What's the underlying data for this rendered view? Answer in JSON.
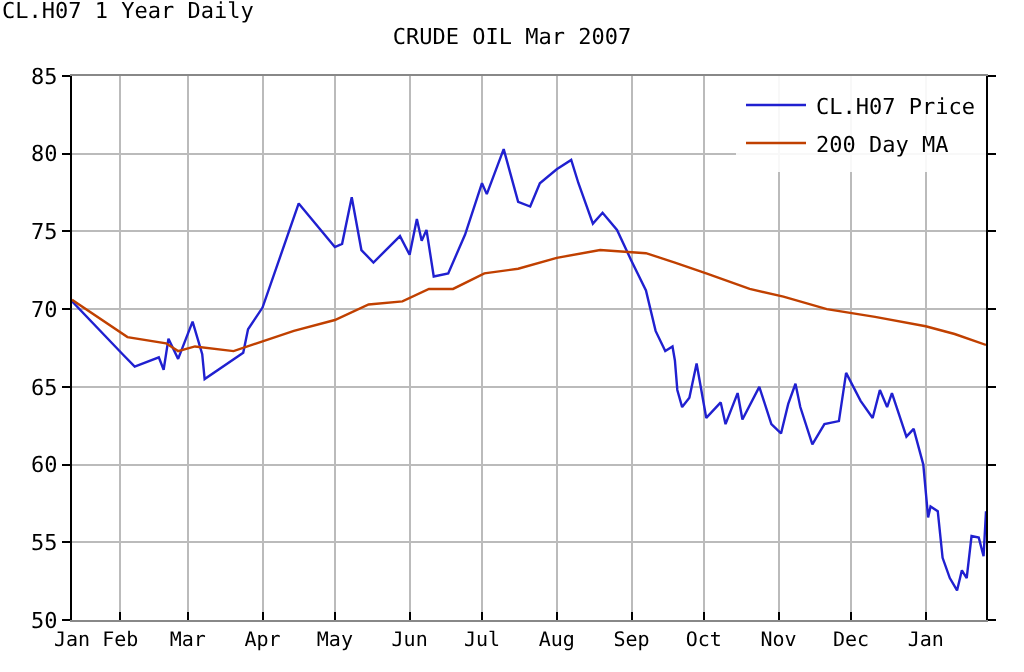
{
  "chart_data": {
    "type": "line",
    "title": "CRUDE OIL Mar 2007",
    "subtitle": "CL.H07 1 Year Daily",
    "xlim": [
      "2006-01-12",
      "2007-01-26"
    ],
    "xticks": [
      {
        "value": "2006-01-12",
        "label": "Jan"
      },
      {
        "value": "2006-02-01",
        "label": "Feb"
      },
      {
        "value": "2006-03-01",
        "label": "Mar"
      },
      {
        "value": "2006-04-01",
        "label": "Apr"
      },
      {
        "value": "2006-05-01",
        "label": "May"
      },
      {
        "value": "2006-06-01",
        "label": "Jun"
      },
      {
        "value": "2006-07-01",
        "label": "Jul"
      },
      {
        "value": "2006-08-01",
        "label": "Aug"
      },
      {
        "value": "2006-09-01",
        "label": "Sep"
      },
      {
        "value": "2006-10-01",
        "label": "Oct"
      },
      {
        "value": "2006-11-01",
        "label": "Nov"
      },
      {
        "value": "2006-12-01",
        "label": "Dec"
      },
      {
        "value": "2007-01-01",
        "label": "Jan"
      }
    ],
    "ylim": [
      50,
      85
    ],
    "yticks": [
      50,
      55,
      60,
      65,
      70,
      75,
      80,
      85
    ],
    "grid": true,
    "legend": "top right",
    "marker": "none",
    "line_style": "solid",
    "series": [
      {
        "name": "CL.H07 Price",
        "color": "#2020d0",
        "x": [
          "2006-01-12",
          "2006-02-02",
          "2006-02-07",
          "2006-02-17",
          "2006-02-19",
          "2006-02-21",
          "2006-02-25",
          "2006-03-03",
          "2006-03-07",
          "2006-03-08",
          "2006-03-24",
          "2006-03-26",
          "2006-04-01",
          "2006-04-16",
          "2006-05-01",
          "2006-05-04",
          "2006-05-08",
          "2006-05-12",
          "2006-05-17",
          "2006-05-28",
          "2006-06-01",
          "2006-06-04",
          "2006-06-06",
          "2006-06-08",
          "2006-06-11",
          "2006-06-17",
          "2006-06-24",
          "2006-07-01",
          "2006-07-03",
          "2006-07-10",
          "2006-07-16",
          "2006-07-21",
          "2006-07-25",
          "2006-08-01",
          "2006-08-07",
          "2006-08-10",
          "2006-08-16",
          "2006-08-20",
          "2006-08-26",
          "2006-09-01",
          "2006-09-07",
          "2006-09-11",
          "2006-09-15",
          "2006-09-18",
          "2006-09-19",
          "2006-09-20",
          "2006-09-22",
          "2006-09-25",
          "2006-09-28",
          "2006-10-02",
          "2006-10-08",
          "2006-10-10",
          "2006-10-15",
          "2006-10-17",
          "2006-10-24",
          "2006-10-29",
          "2006-11-02",
          "2006-11-05",
          "2006-11-08",
          "2006-11-10",
          "2006-11-15",
          "2006-11-20",
          "2006-11-26",
          "2006-11-29",
          "2006-12-05",
          "2006-12-10",
          "2006-12-13",
          "2006-12-16",
          "2006-12-18",
          "2006-12-24",
          "2006-12-27",
          "2006-12-31",
          "2007-01-02",
          "2007-01-03",
          "2007-01-06",
          "2007-01-08",
          "2007-01-11",
          "2007-01-14",
          "2007-01-16",
          "2007-01-18",
          "2007-01-20",
          "2007-01-23",
          "2007-01-25",
          "2007-01-26"
        ],
        "values": [
          70.5,
          67.1,
          66.3,
          66.9,
          66.1,
          68.1,
          66.8,
          69.2,
          67.1,
          65.5,
          67.2,
          68.7,
          70.1,
          76.8,
          74.0,
          74.2,
          77.2,
          73.8,
          73.0,
          74.7,
          73.5,
          75.8,
          74.4,
          75.1,
          72.1,
          72.3,
          74.8,
          78.1,
          77.4,
          80.3,
          76.9,
          76.6,
          78.1,
          79.0,
          79.6,
          78.1,
          75.5,
          76.2,
          75.1,
          73.1,
          71.2,
          68.6,
          67.3,
          67.6,
          66.7,
          64.8,
          63.7,
          64.3,
          66.5,
          63.0,
          64.0,
          62.6,
          64.6,
          62.9,
          65.0,
          62.6,
          62.0,
          63.9,
          65.2,
          63.7,
          61.3,
          62.6,
          62.8,
          65.9,
          64.1,
          63.0,
          64.8,
          63.7,
          64.6,
          61.8,
          62.3,
          60.0,
          56.6,
          57.3,
          57.0,
          54.0,
          52.7,
          51.9,
          53.2,
          52.7,
          55.4,
          55.3,
          54.1,
          57.0
        ]
      },
      {
        "name": "200 Day MA",
        "color": "#c04000",
        "x": [
          "2006-01-12",
          "2006-02-04",
          "2006-02-20",
          "2006-02-25",
          "2006-03-04",
          "2006-03-20",
          "2006-04-14",
          "2006-05-01",
          "2006-05-15",
          "2006-05-29",
          "2006-06-09",
          "2006-06-19",
          "2006-07-02",
          "2006-07-16",
          "2006-08-01",
          "2006-08-19",
          "2006-09-07",
          "2006-09-19",
          "2006-10-02",
          "2006-10-20",
          "2006-11-03",
          "2006-11-21",
          "2006-12-11",
          "2007-01-01",
          "2007-01-13",
          "2007-01-26"
        ],
        "values": [
          70.6,
          68.2,
          67.8,
          67.3,
          67.6,
          67.3,
          68.6,
          69.3,
          70.3,
          70.5,
          71.3,
          71.3,
          72.3,
          72.6,
          73.3,
          73.8,
          73.6,
          73.0,
          72.3,
          71.3,
          70.8,
          70.0,
          69.5,
          68.9,
          68.4,
          67.7
        ]
      }
    ]
  }
}
